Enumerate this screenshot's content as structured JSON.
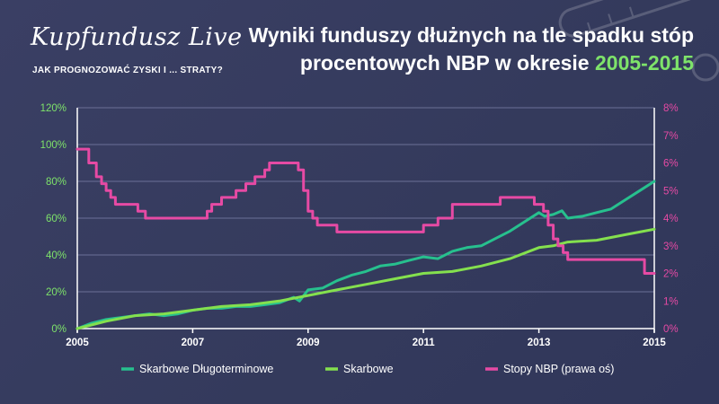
{
  "brand": {
    "logo_text": "Kupfundusz Live",
    "tagline": "JAK PROGNOZOWAĆ ZYSKI I ... STRATY?"
  },
  "header": {
    "title_line1": "Wyniki funduszy dłużnych na tle spadku stóp",
    "title_line2": "procentowych NBP w okresie",
    "title_highlight": "2005-2015"
  },
  "colors": {
    "background": "#353a5c",
    "series_long": "#27c08e",
    "series_treasury": "#84e04e",
    "series_nbp": "#e64aa4",
    "grid": "#6b7097"
  },
  "chart_data": {
    "type": "line",
    "title": "Wyniki funduszy dłużnych na tle spadku stóp procentowych NBP w okresie 2005-2015",
    "xlim": [
      2005,
      2015
    ],
    "x_ticks": [
      "2005",
      "2007",
      "2009",
      "2011",
      "2013",
      "2015"
    ],
    "y_left": {
      "lim": [
        0,
        120
      ],
      "ticks": [
        "0%",
        "20%",
        "40%",
        "60%",
        "80%",
        "100%",
        "120%"
      ]
    },
    "y_right": {
      "lim": [
        0,
        8
      ],
      "ticks": [
        "0%",
        "1%",
        "2%",
        "3%",
        "4%",
        "5%",
        "6%",
        "7%",
        "8%"
      ]
    },
    "legend_position": "bottom",
    "series": [
      {
        "name": "Skarbowe Długoterminowe",
        "axis": "left",
        "x": [
          2005,
          2005.25,
          2005.5,
          2005.75,
          2006,
          2006.25,
          2006.5,
          2006.75,
          2007,
          2007.25,
          2007.5,
          2007.75,
          2008,
          2008.25,
          2008.5,
          2008.75,
          2008.85,
          2009,
          2009.25,
          2009.5,
          2009.75,
          2010,
          2010.25,
          2010.5,
          2010.75,
          2011,
          2011.25,
          2011.5,
          2011.75,
          2012,
          2012.25,
          2012.5,
          2012.75,
          2013,
          2013.1,
          2013.25,
          2013.4,
          2013.5,
          2013.75,
          2014,
          2014.25,
          2014.5,
          2014.75,
          2015
        ],
        "y": [
          0,
          3,
          5,
          6,
          7,
          8,
          7,
          8,
          10,
          11,
          11,
          12,
          12,
          13,
          14,
          17,
          15,
          21,
          22,
          26,
          29,
          31,
          34,
          35,
          37,
          39,
          38,
          42,
          44,
          45,
          49,
          53,
          58,
          63,
          61,
          62,
          64,
          60,
          61,
          63,
          65,
          70,
          75,
          80
        ]
      },
      {
        "name": "Skarbowe",
        "axis": "left",
        "x": [
          2005,
          2005.5,
          2006,
          2006.5,
          2007,
          2007.5,
          2008,
          2008.5,
          2009,
          2009.5,
          2010,
          2010.5,
          2011,
          2011.5,
          2012,
          2012.5,
          2013,
          2013.25,
          2013.5,
          2014,
          2014.5,
          2015
        ],
        "y": [
          0,
          4,
          7,
          8,
          10,
          12,
          13,
          15,
          18,
          21,
          24,
          27,
          30,
          31,
          34,
          38,
          44,
          45,
          47,
          48,
          51,
          54
        ]
      },
      {
        "name": "Stopy NBP (prawa oś)",
        "axis": "right",
        "step": true,
        "x": [
          2005,
          2005.2,
          2005.33,
          2005.42,
          2005.5,
          2005.58,
          2005.66,
          2006.05,
          2006.18,
          2007.25,
          2007.33,
          2007.41,
          2007.5,
          2007.58,
          2007.75,
          2007.83,
          2007.92,
          2008.08,
          2008.16,
          2008.25,
          2008.33,
          2008.5,
          2008.83,
          2008.92,
          2009,
          2009.08,
          2009.16,
          2009.25,
          2009.5,
          2010,
          2011,
          2011.25,
          2011.5,
          2012.33,
          2012.92,
          2013.08,
          2013.16,
          2013.25,
          2013.33,
          2013.42,
          2013.5,
          2014,
          2014.5,
          2014.75,
          2014.83,
          2015
        ],
        "y": [
          6.5,
          6.0,
          5.5,
          5.25,
          5.0,
          4.75,
          4.5,
          4.25,
          4.0,
          4.25,
          4.5,
          4.5,
          4.75,
          4.75,
          5.0,
          5.0,
          5.25,
          5.5,
          5.5,
          5.75,
          6.0,
          6.0,
          5.75,
          5.0,
          4.25,
          4.0,
          3.75,
          3.75,
          3.5,
          3.5,
          3.75,
          4.0,
          4.5,
          4.75,
          4.5,
          4.25,
          3.75,
          3.25,
          3.0,
          2.75,
          2.5,
          2.5,
          2.5,
          2.5,
          2.0,
          2.0
        ]
      }
    ]
  }
}
